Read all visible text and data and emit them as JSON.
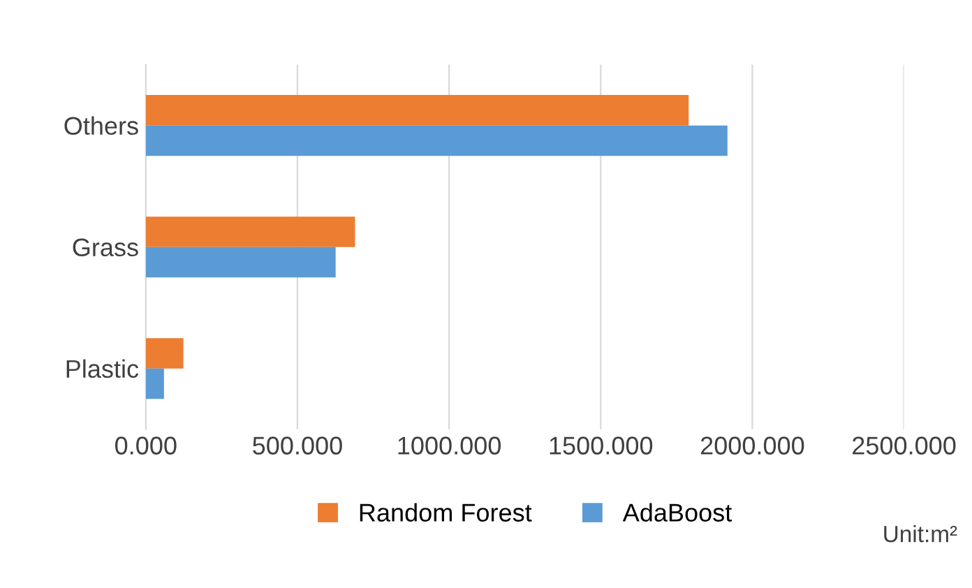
{
  "chart_data": {
    "type": "bar",
    "orientation": "horizontal",
    "categories": [
      "Others",
      "Grass",
      "Plastic"
    ],
    "series": [
      {
        "name": "Random Forest",
        "color": "#ed7d31",
        "values": [
          1790,
          690,
          124
        ]
      },
      {
        "name": "AdaBoost",
        "color": "#5b9bd5",
        "values": [
          1918,
          626,
          60
        ]
      }
    ],
    "xlim": [
      0,
      2500
    ],
    "xticks": [
      {
        "value": 0,
        "label": "0.000"
      },
      {
        "value": 500,
        "label": "500.000"
      },
      {
        "value": 1000,
        "label": "1000.000"
      },
      {
        "value": 1500,
        "label": "1500.000"
      },
      {
        "value": 2000,
        "label": "2000.000"
      },
      {
        "value": 2500,
        "label": "2500.000"
      }
    ],
    "grid": "x",
    "legend": "bottom",
    "annotations": [
      "Unit:m²"
    ]
  }
}
